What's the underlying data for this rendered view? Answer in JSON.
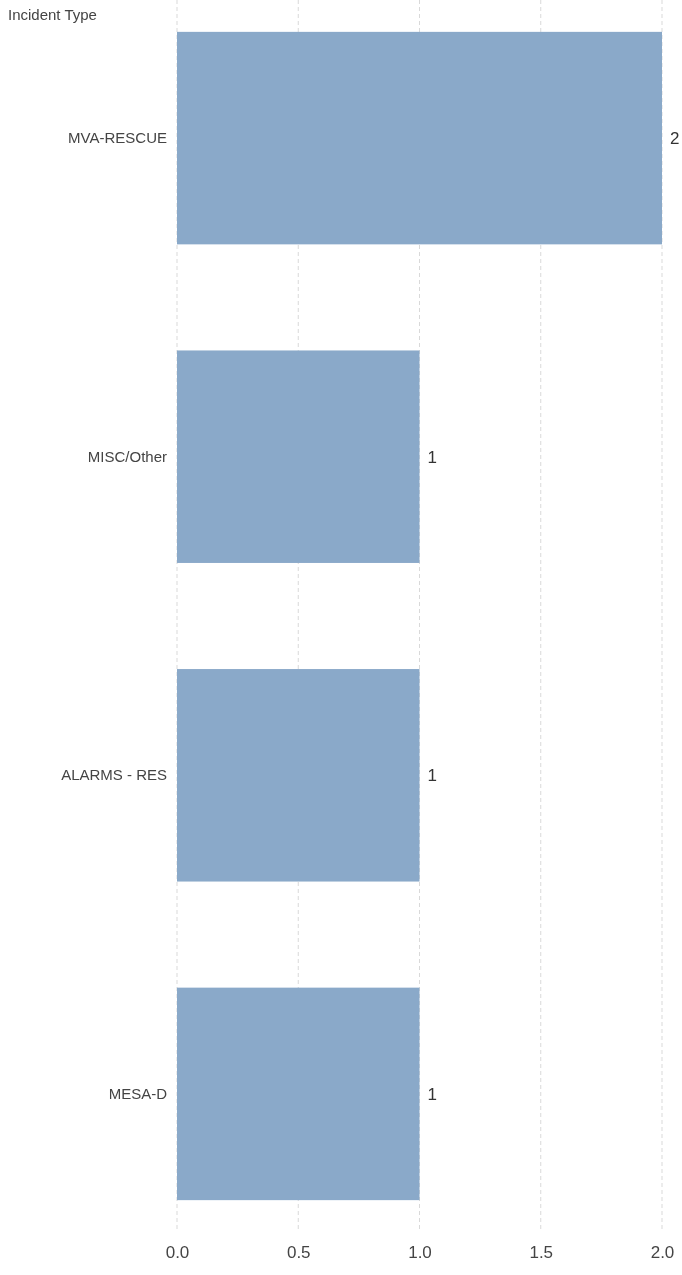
{
  "chart_data": {
    "type": "bar",
    "orientation": "horizontal",
    "ylabel": "Incident Type",
    "categories": [
      "MVA-RESCUE",
      "MISC/Other",
      "ALARMS - RES",
      "MESA-D"
    ],
    "values": [
      2,
      1,
      1,
      1
    ],
    "color": "#8aa9c9",
    "xlim": [
      0,
      2
    ],
    "xticks": [
      {
        "value": 0,
        "label": "0.0"
      },
      {
        "value": 0.5,
        "label": "0.5"
      },
      {
        "value": 1,
        "label": "1.0"
      },
      {
        "value": 1.5,
        "label": "1.5"
      },
      {
        "value": 2,
        "label": "2.0"
      }
    ],
    "grid": "x",
    "data_labels": true
  }
}
